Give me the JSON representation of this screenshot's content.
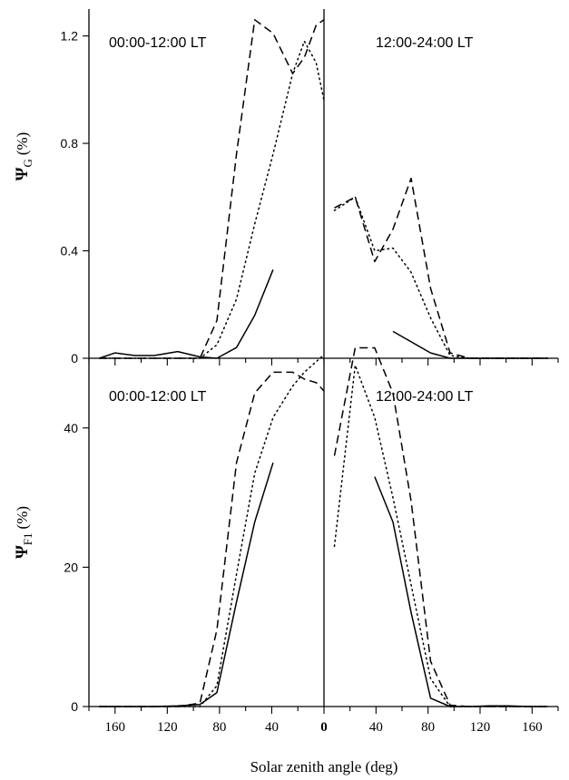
{
  "chart_data": {
    "type": "line",
    "xlabel": "Solar zenith angle (deg)",
    "x_ticks_left": [
      "160",
      "120",
      "80",
      "40",
      "0"
    ],
    "x_ticks_right": [
      "40",
      "80",
      "120",
      "160"
    ],
    "styles": [
      "solid",
      "dotted",
      "dashed"
    ],
    "panels": [
      {
        "id": "top-left",
        "title": "00:00-12:00 LT",
        "ylabel_symbol": "Ψ",
        "ylabel_sub": "G",
        "ylabel_unit": "(%)",
        "yticks": [
          "0",
          "0.4",
          "0.8",
          "1.2"
        ],
        "ylim": [
          0,
          1.3
        ],
        "xlim": [
          180,
          0
        ],
        "series": [
          {
            "style": "solid",
            "x": [
              172,
              160,
              145,
              130,
              112,
              95,
              82,
              67,
              53,
              39
            ],
            "y": [
              0,
              0.02,
              0.01,
              0.01,
              0.025,
              0.005,
              0,
              0.04,
              0.16,
              0.33
            ]
          },
          {
            "style": "dotted",
            "x": [
              172,
              160,
              145,
              130,
              112,
              95,
              82,
              67,
              53,
              39,
              24,
              15,
              6,
              0
            ],
            "y": [
              0,
              0,
              0,
              0,
              0,
              0,
              0.05,
              0.22,
              0.5,
              0.76,
              1.06,
              1.18,
              1.1,
              0.96
            ]
          },
          {
            "style": "dashed",
            "x": [
              172,
              160,
              145,
              130,
              112,
              95,
              82,
              67,
              53,
              39,
              24,
              15,
              6,
              0
            ],
            "y": [
              0,
              0,
              0,
              0,
              0,
              0,
              0.14,
              0.76,
              1.26,
              1.21,
              1.06,
              1.12,
              1.24,
              1.26
            ]
          }
        ]
      },
      {
        "id": "top-right",
        "title": "12:00-24:00 LT",
        "ylabel_symbol": "",
        "ylabel_sub": "",
        "ylabel_unit": "",
        "yticks": [],
        "ylim": [
          0,
          1.3
        ],
        "xlim": [
          0,
          180
        ],
        "series": [
          {
            "style": "solid",
            "x": [
              53,
              82,
              97,
              112,
              127,
              142,
              157,
              172
            ],
            "y": [
              0.1,
              0.02,
              0,
              0,
              0,
              0,
              0,
              0
            ]
          },
          {
            "style": "dotted",
            "x": [
              8,
              24,
              39,
              53,
              67,
              82,
              97,
              112,
              127,
              142,
              157,
              172
            ],
            "y": [
              0.55,
              0.6,
              0.4,
              0.41,
              0.32,
              0.15,
              0.01,
              0,
              0,
              0,
              0,
              0
            ]
          },
          {
            "style": "dashed",
            "x": [
              8,
              24,
              39,
              53,
              67,
              82,
              97,
              112,
              127,
              142,
              157,
              172
            ],
            "y": [
              0.56,
              0.6,
              0.36,
              0.48,
              0.67,
              0.26,
              0.02,
              0,
              0,
              0,
              0,
              0
            ]
          }
        ]
      },
      {
        "id": "bottom-left",
        "title": "00:00-12:00 LT",
        "ylabel_symbol": "Ψ",
        "ylabel_sub": "F1",
        "ylabel_unit": "(%)",
        "yticks": [
          "0",
          "20",
          "40"
        ],
        "ylim": [
          0,
          50
        ],
        "xlim": [
          180,
          0
        ],
        "series": [
          {
            "style": "solid",
            "x": [
              172,
              160,
              145,
              130,
              112,
              95,
              82,
              67,
              53,
              39
            ],
            "y": [
              0,
              0,
              0,
              0,
              0.1,
              0.3,
              2,
              15,
              26.5,
              35
            ]
          },
          {
            "style": "dotted",
            "x": [
              172,
              160,
              145,
              130,
              112,
              95,
              82,
              67,
              53,
              39,
              24,
              15,
              6,
              0
            ],
            "y": [
              0,
              0,
              0,
              0,
              0,
              0,
              3,
              19,
              33.5,
              41.5,
              46,
              48,
              49.5,
              50.5
            ]
          },
          {
            "style": "dashed",
            "x": [
              172,
              160,
              145,
              130,
              112,
              95,
              82,
              67,
              53,
              39,
              24,
              15,
              6,
              0
            ],
            "y": [
              0,
              0,
              0,
              0,
              0,
              0.5,
              11,
              35,
              45,
              48,
              48,
              47,
              46.5,
              45.3
            ]
          }
        ]
      },
      {
        "id": "bottom-right",
        "title": "12:00-24:00 LT",
        "ylabel_symbol": "",
        "ylabel_sub": "",
        "ylabel_unit": "",
        "yticks": [],
        "ylim": [
          0,
          50
        ],
        "xlim": [
          0,
          180
        ],
        "series": [
          {
            "style": "solid",
            "x": [
              39,
              53,
              67,
              82,
              97,
              112,
              127,
              142,
              157,
              172
            ],
            "y": [
              33,
              26.5,
              13.5,
              1.2,
              0,
              0,
              0.1,
              0.1,
              0,
              0
            ]
          },
          {
            "style": "dotted",
            "x": [
              8,
              24,
              39,
              53,
              67,
              82,
              97,
              112,
              127,
              142,
              157,
              172
            ],
            "y": [
              23,
              49,
              41.5,
              30,
              17.5,
              4,
              0,
              0,
              0,
              0,
              0,
              0
            ]
          },
          {
            "style": "dashed",
            "x": [
              8,
              24,
              39,
              53,
              67,
              82,
              97,
              112,
              127,
              142,
              157,
              172
            ],
            "y": [
              36,
              51.5,
              51.5,
              45,
              29.5,
              6.5,
              0.2,
              0,
              0,
              0,
              0,
              0
            ]
          }
        ]
      }
    ]
  }
}
